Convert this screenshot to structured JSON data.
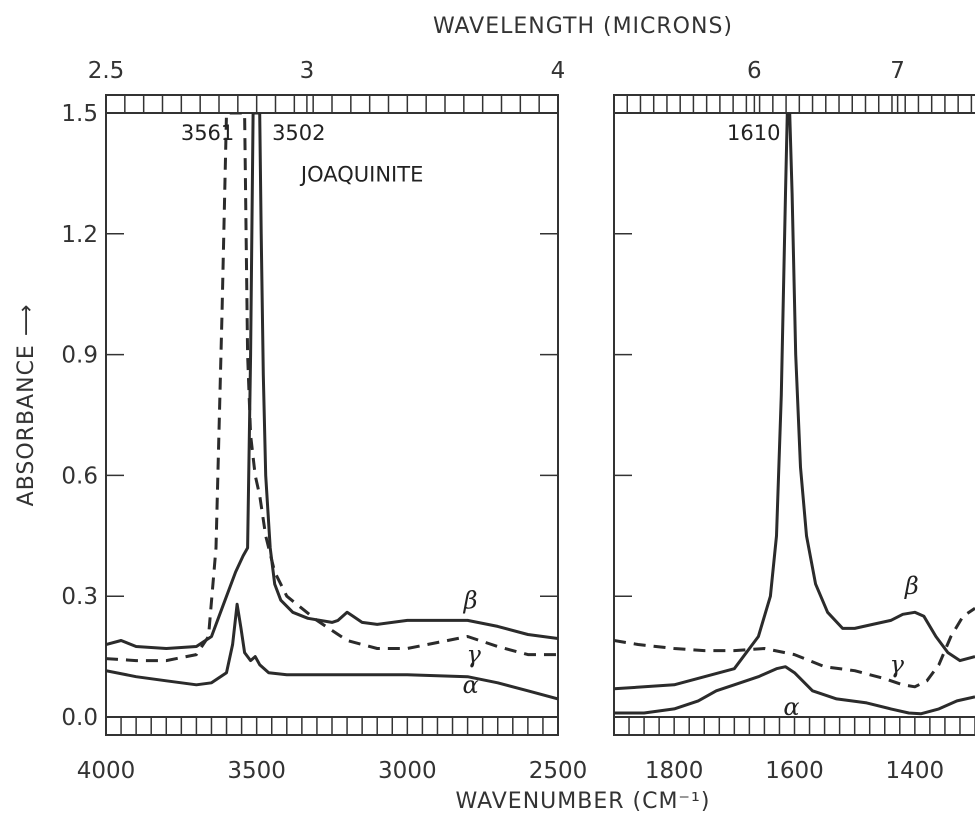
{
  "chart_data": {
    "type": "line",
    "xlabel": "WAVENUMBER (CM⁻¹)",
    "x2label": "WAVELENGTH (MICRONS)",
    "ylabel": "ABSORBANCE ⟶",
    "ylim": [
      0,
      1.5
    ],
    "y_ticks": [
      "0.0",
      "0.3",
      "0.6",
      "0.9",
      "1.2",
      "1.5"
    ],
    "panels": [
      {
        "id": "left",
        "title": "JOAQUINITE",
        "xlim": [
          4000,
          2500
        ],
        "x_ticks": [
          "4000",
          "3500",
          "3000",
          "2500"
        ],
        "top_ticks": [
          "2.5",
          "3",
          "4"
        ],
        "peak_labels": [
          {
            "text": "3561",
            "x": 3561
          },
          {
            "text": "3502",
            "x": 3502
          }
        ],
        "series": [
          {
            "name": "β",
            "style": "solid",
            "points": [
              [
                4000,
                0.18
              ],
              [
                3950,
                0.19
              ],
              [
                3900,
                0.175
              ],
              [
                3800,
                0.17
              ],
              [
                3700,
                0.175
              ],
              [
                3650,
                0.2
              ],
              [
                3610,
                0.28
              ],
              [
                3570,
                0.36
              ],
              [
                3545,
                0.4
              ],
              [
                3530,
                0.42
              ],
              [
                3520,
                0.9
              ],
              [
                3512,
                1.5
              ],
              [
                3502,
                1.5
              ],
              [
                3490,
                1.5
              ],
              [
                3485,
                1.2
              ],
              [
                3478,
                0.85
              ],
              [
                3470,
                0.6
              ],
              [
                3455,
                0.42
              ],
              [
                3440,
                0.33
              ],
              [
                3420,
                0.29
              ],
              [
                3380,
                0.26
              ],
              [
                3330,
                0.245
              ],
              [
                3250,
                0.235
              ],
              [
                3230,
                0.24
              ],
              [
                3200,
                0.26
              ],
              [
                3180,
                0.25
              ],
              [
                3150,
                0.235
              ],
              [
                3100,
                0.23
              ],
              [
                3000,
                0.24
              ],
              [
                2900,
                0.24
              ],
              [
                2800,
                0.24
              ],
              [
                2700,
                0.225
              ],
              [
                2600,
                0.205
              ],
              [
                2500,
                0.195
              ]
            ]
          },
          {
            "name": "γ",
            "style": "dashed",
            "points": [
              [
                4000,
                0.145
              ],
              [
                3900,
                0.14
              ],
              [
                3800,
                0.14
              ],
              [
                3700,
                0.155
              ],
              [
                3660,
                0.2
              ],
              [
                3635,
                0.42
              ],
              [
                3615,
                1.0
              ],
              [
                3600,
                1.5
              ],
              [
                3561,
                1.5
              ],
              [
                3540,
                1.5
              ],
              [
                3530,
                0.9
              ],
              [
                3520,
                0.7
              ],
              [
                3505,
                0.6
              ],
              [
                3490,
                0.55
              ],
              [
                3470,
                0.45
              ],
              [
                3440,
                0.36
              ],
              [
                3400,
                0.3
              ],
              [
                3300,
                0.24
              ],
              [
                3200,
                0.19
              ],
              [
                3100,
                0.17
              ],
              [
                3000,
                0.17
              ],
              [
                2900,
                0.185
              ],
              [
                2800,
                0.2
              ],
              [
                2700,
                0.175
              ],
              [
                2600,
                0.155
              ],
              [
                2500,
                0.155
              ]
            ]
          },
          {
            "name": "α",
            "style": "solid",
            "points": [
              [
                4000,
                0.115
              ],
              [
                3900,
                0.1
              ],
              [
                3800,
                0.09
              ],
              [
                3700,
                0.08
              ],
              [
                3650,
                0.085
              ],
              [
                3600,
                0.11
              ],
              [
                3580,
                0.18
              ],
              [
                3565,
                0.28
              ],
              [
                3552,
                0.22
              ],
              [
                3540,
                0.16
              ],
              [
                3520,
                0.14
              ],
              [
                3505,
                0.15
              ],
              [
                3490,
                0.13
              ],
              [
                3460,
                0.11
              ],
              [
                3400,
                0.105
              ],
              [
                3300,
                0.105
              ],
              [
                3000,
                0.105
              ],
              [
                2800,
                0.1
              ],
              [
                2700,
                0.085
              ],
              [
                2600,
                0.065
              ],
              [
                2500,
                0.045
              ]
            ]
          }
        ]
      },
      {
        "id": "right",
        "xlim": [
          1900,
          1300
        ],
        "x_ticks": [
          "1800",
          "1600",
          "1400"
        ],
        "top_ticks": [
          "6",
          "7"
        ],
        "peak_labels": [
          {
            "text": "1610",
            "x": 1610
          }
        ],
        "series": [
          {
            "name": "β",
            "style": "solid",
            "points": [
              [
                1900,
                0.07
              ],
              [
                1800,
                0.08
              ],
              [
                1700,
                0.12
              ],
              [
                1660,
                0.2
              ],
              [
                1640,
                0.3
              ],
              [
                1630,
                0.45
              ],
              [
                1622,
                0.8
              ],
              [
                1615,
                1.3
              ],
              [
                1612,
                1.5
              ],
              [
                1608,
                1.5
              ],
              [
                1604,
                1.3
              ],
              [
                1598,
                0.9
              ],
              [
                1590,
                0.62
              ],
              [
                1580,
                0.45
              ],
              [
                1565,
                0.33
              ],
              [
                1545,
                0.26
              ],
              [
                1520,
                0.22
              ],
              [
                1500,
                0.22
              ],
              [
                1470,
                0.23
              ],
              [
                1440,
                0.24
              ],
              [
                1420,
                0.255
              ],
              [
                1400,
                0.26
              ],
              [
                1385,
                0.25
              ],
              [
                1365,
                0.2
              ],
              [
                1345,
                0.16
              ],
              [
                1325,
                0.14
              ],
              [
                1300,
                0.15
              ]
            ]
          },
          {
            "name": "γ",
            "style": "dashed",
            "points": [
              [
                1900,
                0.19
              ],
              [
                1860,
                0.18
              ],
              [
                1800,
                0.17
              ],
              [
                1750,
                0.165
              ],
              [
                1700,
                0.165
              ],
              [
                1650,
                0.17
              ],
              [
                1600,
                0.155
              ],
              [
                1550,
                0.125
              ],
              [
                1500,
                0.115
              ],
              [
                1450,
                0.095
              ],
              [
                1420,
                0.08
              ],
              [
                1400,
                0.075
              ],
              [
                1380,
                0.09
              ],
              [
                1360,
                0.13
              ],
              [
                1340,
                0.2
              ],
              [
                1320,
                0.25
              ],
              [
                1300,
                0.27
              ]
            ]
          },
          {
            "name": "α",
            "style": "solid",
            "points": [
              [
                1900,
                0.01
              ],
              [
                1850,
                0.01
              ],
              [
                1800,
                0.02
              ],
              [
                1760,
                0.04
              ],
              [
                1730,
                0.065
              ],
              [
                1700,
                0.08
              ],
              [
                1660,
                0.1
              ],
              [
                1630,
                0.12
              ],
              [
                1615,
                0.125
              ],
              [
                1600,
                0.11
              ],
              [
                1570,
                0.065
              ],
              [
                1530,
                0.045
              ],
              [
                1480,
                0.035
              ],
              [
                1440,
                0.02
              ],
              [
                1410,
                0.01
              ],
              [
                1390,
                0.008
              ],
              [
                1360,
                0.02
              ],
              [
                1330,
                0.04
              ],
              [
                1300,
                0.05
              ]
            ]
          }
        ]
      }
    ]
  }
}
